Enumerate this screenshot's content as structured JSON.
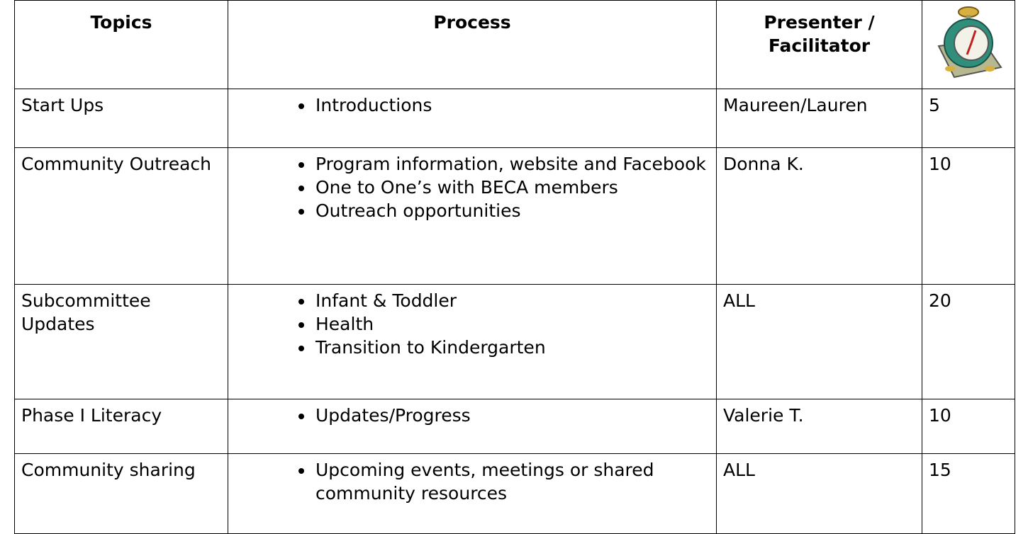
{
  "table": {
    "header": [
      "Topics",
      "Process",
      "Presenter / Facilitator"
    ],
    "rows": [
      {
        "topic": "Start Ups",
        "process": [
          "Introductions"
        ],
        "presenter": "Maureen/Lauren",
        "minutes": 5
      },
      {
        "topic": "Community Outreach",
        "process": [
          "Program information, website and Facebook",
          "One to One’s with BECA members",
          "Outreach opportunities"
        ],
        "presenter": "Donna K.",
        "minutes": 10
      },
      {
        "topic": "Subcommittee Updates",
        "process": [
          "Infant & Toddler",
          "Health",
          "Transition to Kindergarten"
        ],
        "presenter": "ALL",
        "minutes": 20
      },
      {
        "topic": "Phase I Literacy",
        "process": [
          "Updates/Progress"
        ],
        "presenter": "Valerie T.",
        "minutes": 10
      },
      {
        "topic": "Community sharing",
        "process": [
          "Upcoming events, meetings or shared community resources"
        ],
        "presenter": "ALL",
        "minutes": 15
      }
    ]
  }
}
